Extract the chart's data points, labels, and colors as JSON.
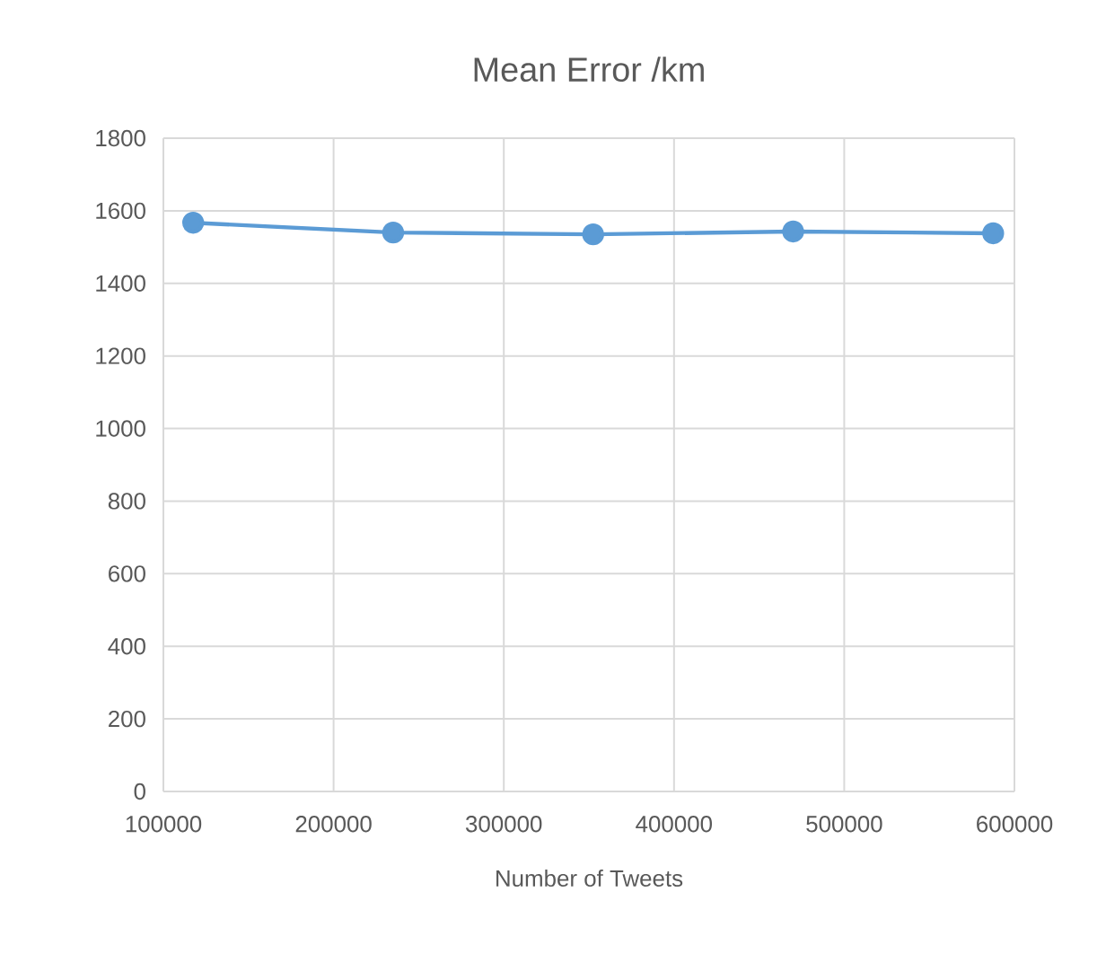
{
  "chart_data": {
    "type": "line",
    "title": "Mean Error /km",
    "xlabel": "Number of Tweets",
    "x": [
      117500,
      235000,
      352500,
      470000,
      587500
    ],
    "series": [
      {
        "color": "#5b9bd5",
        "values": [
          1567,
          1540,
          1535,
          1543,
          1538
        ]
      }
    ],
    "xlim": [
      100000,
      600000
    ],
    "xticks": [
      100000,
      200000,
      300000,
      400000,
      500000,
      600000
    ],
    "ylim": [
      0,
      1800
    ],
    "yticks": [
      0,
      200,
      400,
      600,
      800,
      1000,
      1200,
      1400,
      1600,
      1800
    ],
    "grid": true,
    "marker": "circle",
    "line_style": "solid"
  }
}
